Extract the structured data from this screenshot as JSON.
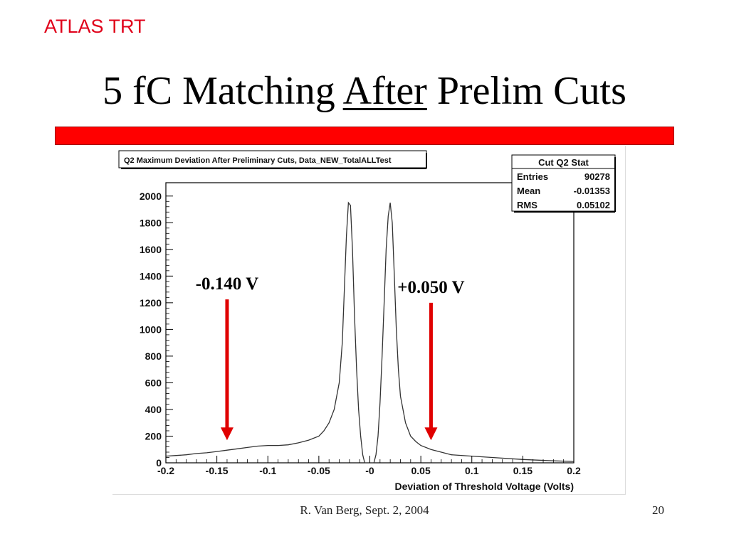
{
  "slide": {
    "header_tag": "ATLAS TRT",
    "title_pre": "5 fC Matching ",
    "title_underlined": "After",
    "title_post": " Prelim Cuts",
    "footer": "R. Van Berg, Sept. 2, 2004",
    "page_number": "20",
    "accent_color": "#ff0000"
  },
  "chart_data": {
    "type": "histogram",
    "title": "Q2 Maximum Deviation After Preliminary Cuts, Data_NEW_TotalALLTest",
    "xlabel": "Deviation of Threshold Voltage (Volts)",
    "ylabel": "",
    "xlim": [
      -0.2,
      0.2
    ],
    "ylim": [
      0,
      2100
    ],
    "x_ticks": [
      "-0.2",
      "-0.15",
      "-0.1",
      "-0.05",
      "-0",
      "0.05",
      "0.1",
      "0.15",
      "0.2"
    ],
    "y_ticks": [
      "0",
      "200",
      "400",
      "600",
      "800",
      "1000",
      "1200",
      "1400",
      "1600",
      "1800",
      "2000"
    ],
    "stats_box": {
      "title": "Cut Q2 Stat",
      "rows": [
        {
          "label": "Entries",
          "value": "90278"
        },
        {
          "label": "Mean",
          "value": "-0.01353"
        },
        {
          "label": "RMS",
          "value": "0.05102"
        }
      ]
    },
    "curve": [
      [
        -0.2,
        50
      ],
      [
        -0.19,
        55
      ],
      [
        -0.18,
        60
      ],
      [
        -0.17,
        70
      ],
      [
        -0.16,
        75
      ],
      [
        -0.15,
        85
      ],
      [
        -0.14,
        95
      ],
      [
        -0.13,
        105
      ],
      [
        -0.12,
        115
      ],
      [
        -0.11,
        125
      ],
      [
        -0.1,
        130
      ],
      [
        -0.09,
        130
      ],
      [
        -0.08,
        135
      ],
      [
        -0.07,
        150
      ],
      [
        -0.06,
        170
      ],
      [
        -0.05,
        200
      ],
      [
        -0.045,
        240
      ],
      [
        -0.04,
        300
      ],
      [
        -0.035,
        400
      ],
      [
        -0.03,
        600
      ],
      [
        -0.027,
        900
      ],
      [
        -0.025,
        1300
      ],
      [
        -0.023,
        1700
      ],
      [
        -0.021,
        1950
      ],
      [
        -0.019,
        1930
      ],
      [
        -0.017,
        1600
      ],
      [
        -0.015,
        1100
      ],
      [
        -0.013,
        700
      ],
      [
        -0.011,
        400
      ],
      [
        -0.009,
        200
      ],
      [
        -0.007,
        60
      ],
      [
        -0.005,
        0
      ],
      [
        0.004,
        0
      ],
      [
        0.006,
        60
      ],
      [
        0.008,
        200
      ],
      [
        0.01,
        450
      ],
      [
        0.012,
        800
      ],
      [
        0.014,
        1200
      ],
      [
        0.016,
        1600
      ],
      [
        0.018,
        1850
      ],
      [
        0.02,
        1950
      ],
      [
        0.022,
        1800
      ],
      [
        0.024,
        1400
      ],
      [
        0.026,
        1000
      ],
      [
        0.028,
        700
      ],
      [
        0.03,
        500
      ],
      [
        0.035,
        300
      ],
      [
        0.04,
        200
      ],
      [
        0.045,
        160
      ],
      [
        0.05,
        130
      ],
      [
        0.06,
        100
      ],
      [
        0.07,
        80
      ],
      [
        0.08,
        60
      ],
      [
        0.1,
        50
      ],
      [
        0.12,
        40
      ],
      [
        0.15,
        25
      ],
      [
        0.18,
        15
      ],
      [
        0.2,
        10
      ]
    ],
    "annotations": [
      {
        "label": "-0.140 V",
        "x": -0.14,
        "arrow_from_y": 1225,
        "arrow_to_y": 180
      },
      {
        "label": "+0.050 V",
        "x": 0.06,
        "arrow_from_y": 1200,
        "arrow_to_y": 180
      }
    ],
    "annotation_color": "#e00000",
    "grid": false,
    "legend": "top-right stats box"
  }
}
